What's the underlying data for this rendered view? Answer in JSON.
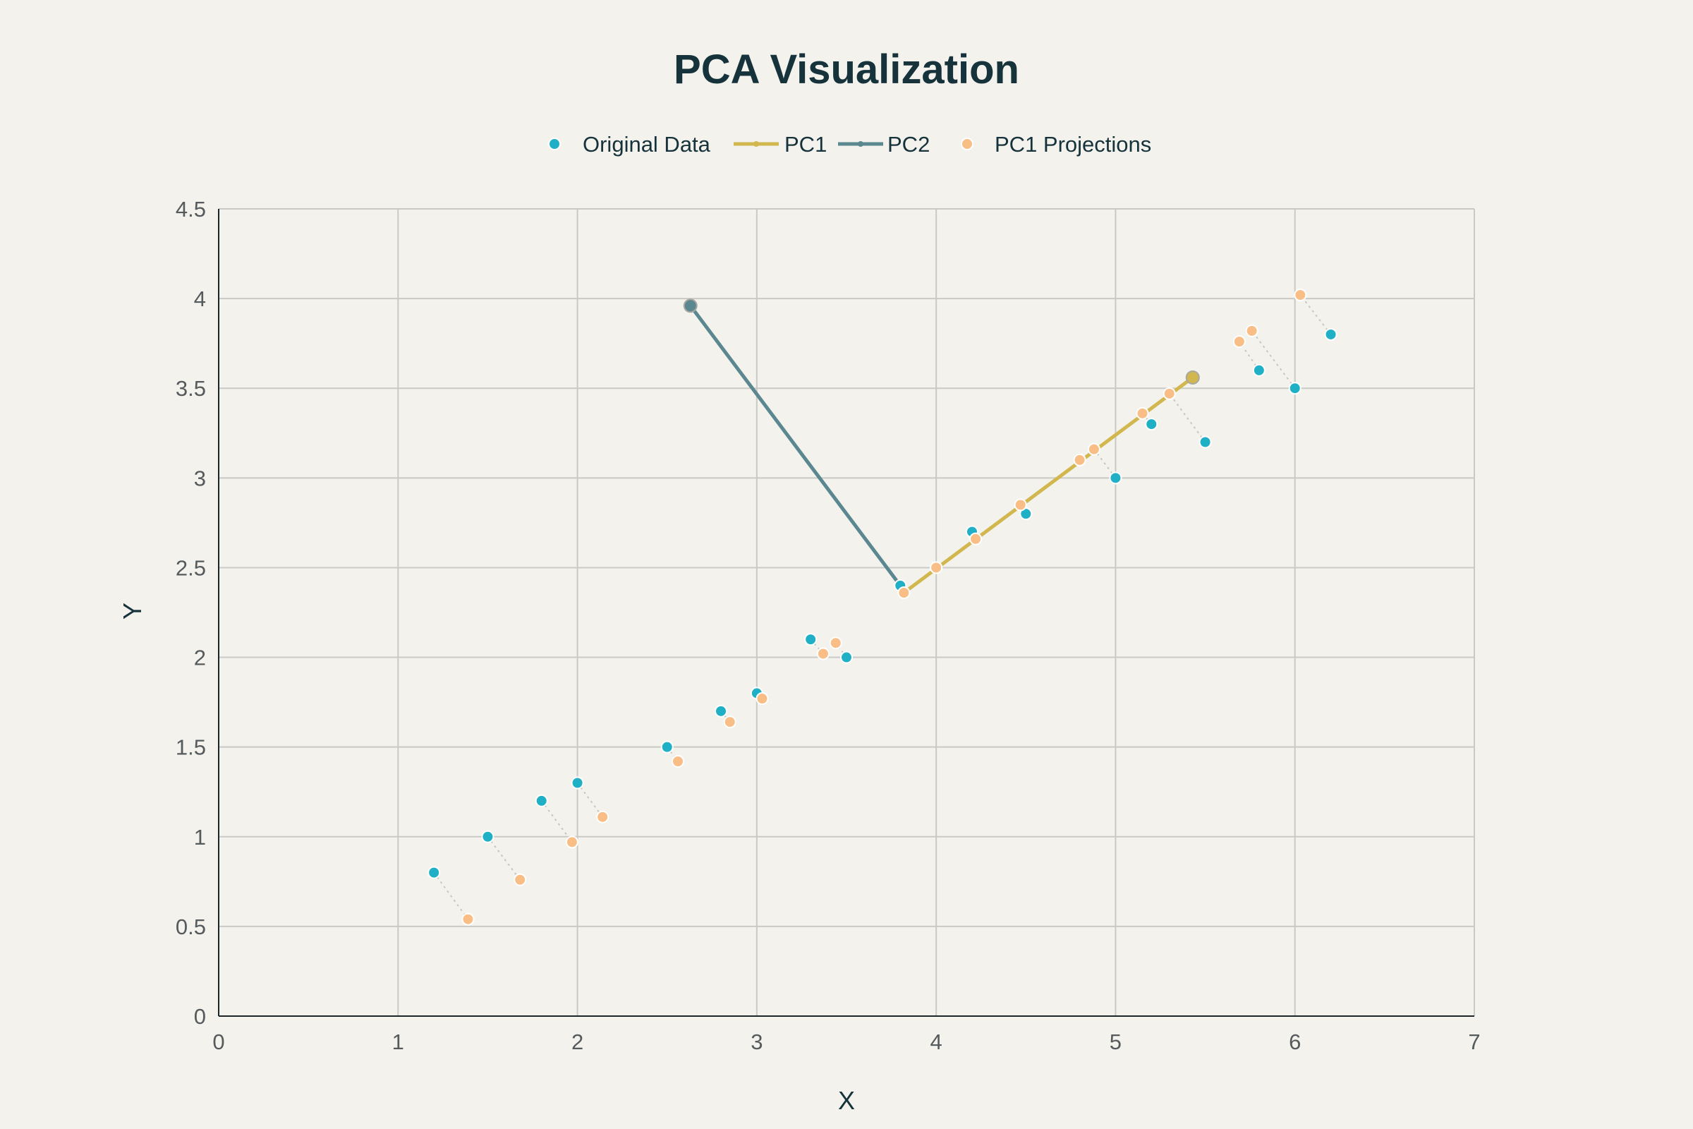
{
  "chart_data": {
    "type": "scatter",
    "title": "PCA Visualization",
    "xlabel": "X",
    "ylabel": "Y",
    "xlim": [
      0,
      7
    ],
    "ylim": [
      0,
      4.5
    ],
    "xticks": [
      0,
      1,
      2,
      3,
      4,
      5,
      6,
      7
    ],
    "yticks": [
      0,
      0.5,
      1,
      1.5,
      2,
      2.5,
      3,
      3.5,
      4,
      4.5
    ],
    "xtick_labels": [
      "0",
      "1",
      "2",
      "3",
      "4",
      "5",
      "6",
      "7"
    ],
    "ytick_labels": [
      "0",
      "0.5",
      "1",
      "1.5",
      "2",
      "2.5",
      "3",
      "3.5",
      "4",
      "4.5"
    ],
    "grid": true,
    "legend": {
      "placement": "top-center",
      "items": [
        {
          "label": "Original Data",
          "kind": "marker",
          "color": "#1fb0c6"
        },
        {
          "label": "PC1",
          "kind": "line",
          "color": "#d2b74f"
        },
        {
          "label": "PC2",
          "kind": "line",
          "color": "#5b8790"
        },
        {
          "label": "PC1 Projections",
          "kind": "marker",
          "color": "#f9bd86"
        }
      ]
    },
    "series": [
      {
        "name": "Original Data",
        "color": "#1fb0c6",
        "points": [
          [
            1.2,
            0.8
          ],
          [
            1.5,
            1.0
          ],
          [
            1.8,
            1.2
          ],
          [
            2.0,
            1.3
          ],
          [
            2.5,
            1.5
          ],
          [
            2.8,
            1.7
          ],
          [
            3.0,
            1.8
          ],
          [
            3.3,
            2.1
          ],
          [
            3.5,
            2.0
          ],
          [
            3.8,
            2.4
          ],
          [
            4.0,
            2.5
          ],
          [
            4.2,
            2.7
          ],
          [
            4.5,
            2.8
          ],
          [
            4.8,
            3.1
          ],
          [
            5.0,
            3.0
          ],
          [
            5.2,
            3.3
          ],
          [
            5.5,
            3.2
          ],
          [
            5.8,
            3.6
          ],
          [
            6.0,
            3.5
          ],
          [
            6.2,
            3.8
          ]
        ]
      },
      {
        "name": "PC1 Projections",
        "color": "#f9bd86",
        "points": [
          [
            1.39,
            0.54
          ],
          [
            1.68,
            0.76
          ],
          [
            1.97,
            0.97
          ],
          [
            2.14,
            1.11
          ],
          [
            2.56,
            1.42
          ],
          [
            2.85,
            1.64
          ],
          [
            3.03,
            1.77
          ],
          [
            3.37,
            2.02
          ],
          [
            3.44,
            2.08
          ],
          [
            3.82,
            2.36
          ],
          [
            4.0,
            2.5
          ],
          [
            4.22,
            2.66
          ],
          [
            4.47,
            2.85
          ],
          [
            4.8,
            3.1
          ],
          [
            4.88,
            3.16
          ],
          [
            5.15,
            3.36
          ],
          [
            5.3,
            3.47
          ],
          [
            5.69,
            3.76
          ],
          [
            5.76,
            3.82
          ],
          [
            6.03,
            4.02
          ]
        ]
      },
      {
        "name": "PC1",
        "color": "#d2b74f",
        "line": [
          [
            3.82,
            2.36
          ],
          [
            5.43,
            3.56
          ]
        ]
      },
      {
        "name": "PC2",
        "color": "#5b8790",
        "line": [
          [
            3.8,
            2.4
          ],
          [
            2.63,
            3.96
          ]
        ]
      }
    ]
  }
}
